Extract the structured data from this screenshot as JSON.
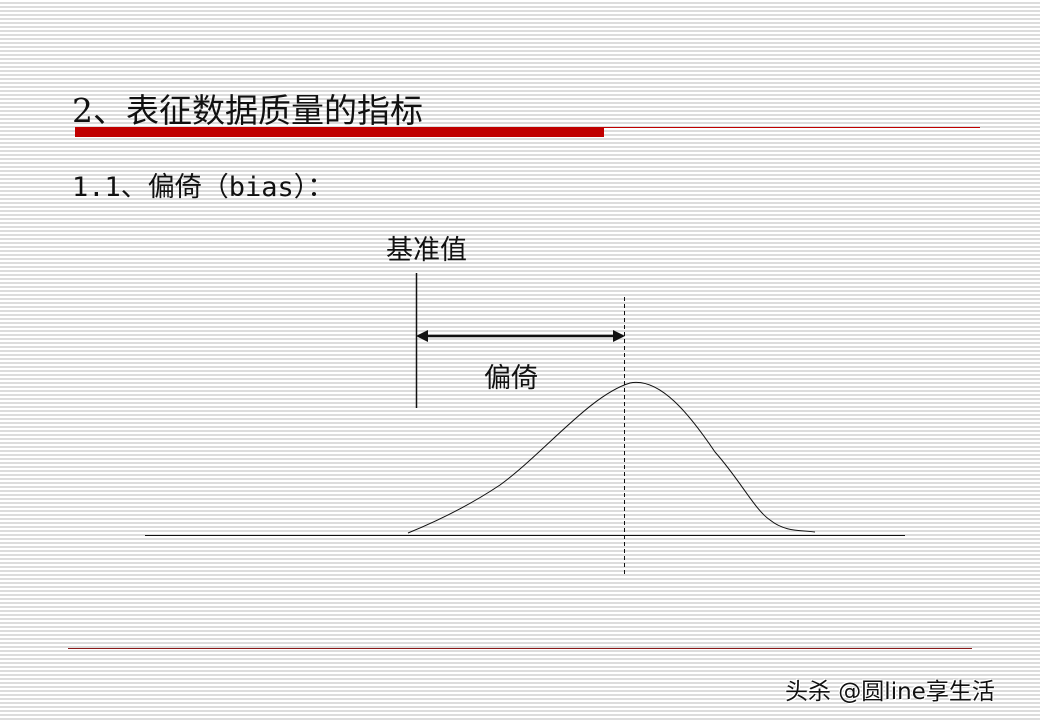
{
  "slide": {
    "title": "2、表征数据质量的指标",
    "subtitle": "1.1、偏倚（bias）：",
    "accent_color": "#c00000"
  },
  "diagram": {
    "reference_label": "基准值",
    "bias_label": "偏倚"
  },
  "watermark": "头杀 @圆line享生活"
}
